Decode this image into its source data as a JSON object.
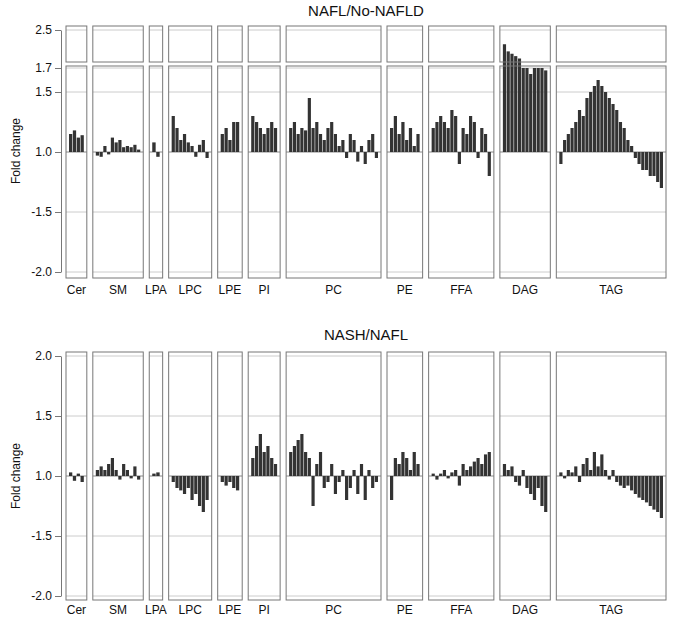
{
  "chart_data": [
    {
      "type": "bar",
      "title": "NAFL/No-NAFLD",
      "y_label": "Fold change",
      "color": "#333333",
      "grid": true,
      "ylim": [
        -2.0,
        2.5
      ],
      "yticks": [
        {
          "value": -2,
          "label": "-2.0"
        },
        -1.5,
        {
          "value": 1,
          "label": "1.0"
        },
        1.5,
        1.7,
        2.5
      ],
      "groups": [
        {
          "name": "Cer",
          "values": [
            1.15,
            1.18,
            1.12,
            1.14
          ]
        },
        {
          "name": "SM",
          "values": [
            -1.03,
            -1.04,
            1.05,
            -1.02,
            1.12,
            1.08,
            1.1,
            1.04,
            1.05,
            1.04,
            1.06,
            1.02
          ]
        },
        {
          "name": "LPA",
          "values": [
            1.08,
            -1.04
          ]
        },
        {
          "name": "LPC",
          "values": [
            1.3,
            1.2,
            1.1,
            1.15,
            1.08,
            1.05,
            -1.04,
            1.06,
            1.1,
            -1.05
          ]
        },
        {
          "name": "LPE",
          "values": [
            1.15,
            1.2,
            1.1,
            1.25,
            1.25
          ]
        },
        {
          "name": "PI",
          "values": [
            1.3,
            1.25,
            1.2,
            1.15,
            1.2,
            1.25,
            1.2
          ]
        },
        {
          "name": "PC",
          "values": [
            1.2,
            1.25,
            1.15,
            1.2,
            1.18,
            1.45,
            1.2,
            1.25,
            1.15,
            1.1,
            1.2,
            1.25,
            1.15,
            1.05,
            1.1,
            -1.05,
            1.15,
            1.1,
            -1.08,
            1.05,
            -1.1,
            1.1,
            1.15,
            -1.05
          ]
        },
        {
          "name": "PE",
          "values": [
            1.2,
            1.3,
            1.15,
            1.25,
            1.1,
            1.2,
            1.05,
            1.15
          ]
        },
        {
          "name": "FFA",
          "values": [
            1.2,
            1.25,
            1.3,
            1.25,
            1.2,
            1.35,
            1.3,
            -1.1,
            1.2,
            1.15,
            1.3,
            1.25,
            -1.05,
            1.2,
            1.15,
            -1.2
          ]
        },
        {
          "name": "DAG",
          "values": [
            2.2,
            2.05,
            2.0,
            1.95,
            1.9,
            1.7,
            1.7,
            1.65,
            1.7,
            1.7,
            1.7,
            1.68
          ]
        },
        {
          "name": "TAG",
          "values": [
            -1.1,
            1.1,
            1.15,
            1.2,
            1.25,
            1.35,
            1.3,
            1.45,
            1.5,
            1.55,
            1.6,
            1.55,
            1.5,
            1.45,
            1.4,
            1.35,
            1.25,
            1.2,
            1.1,
            1.05,
            -1.05,
            -1.1,
            -1.15,
            -1.15,
            -1.2,
            -1.2,
            -1.25,
            -1.3
          ]
        }
      ]
    },
    {
      "type": "bar",
      "title": "NASH/NAFL",
      "y_label": "Fold change",
      "color": "#333333",
      "grid": true,
      "ylim": [
        -2.0,
        2.0
      ],
      "yticks": [
        {
          "value": -2,
          "label": "-2.0"
        },
        -1.5,
        {
          "value": 1,
          "label": "1.0"
        },
        1.5,
        {
          "value": 2,
          "label": "2.0"
        }
      ],
      "groups": [
        {
          "name": "Cer",
          "values": [
            1.03,
            -1.04,
            1.02,
            -1.05
          ]
        },
        {
          "name": "SM",
          "values": [
            1.05,
            1.08,
            1.05,
            1.1,
            1.15,
            1.05,
            -1.03,
            1.1,
            1.05,
            -1.02,
            1.08,
            -1.03
          ]
        },
        {
          "name": "LPA",
          "values": [
            1.02,
            1.03
          ]
        },
        {
          "name": "LPC",
          "values": [
            -1.05,
            -1.1,
            -1.12,
            -1.15,
            -1.1,
            -1.2,
            -1.15,
            -1.25,
            -1.3,
            -1.2
          ]
        },
        {
          "name": "LPE",
          "values": [
            -1.05,
            -1.08,
            -1.05,
            -1.1,
            -1.12
          ]
        },
        {
          "name": "PI",
          "values": [
            1.15,
            1.25,
            1.35,
            1.2,
            1.25,
            1.15,
            1.1
          ]
        },
        {
          "name": "PC",
          "values": [
            1.2,
            1.25,
            1.3,
            1.35,
            1.2,
            1.15,
            -1.25,
            1.1,
            1.2,
            -1.1,
            -1.05,
            1.1,
            -1.15,
            -1.05,
            1.05,
            -1.2,
            -1.1,
            1.05,
            -1.15,
            1.1,
            -1.2,
            1.05,
            -1.1,
            -1.05
          ]
        },
        {
          "name": "PE",
          "values": [
            -1.2,
            1.15,
            1.1,
            1.2,
            1.15,
            1.05,
            1.2,
            1.1
          ]
        },
        {
          "name": "FFA",
          "values": [
            1.02,
            -1.03,
            1.02,
            1.05,
            -1.02,
            1.03,
            1.05,
            -1.08,
            1.1,
            1.05,
            1.08,
            1.12,
            1.15,
            1.1,
            1.18,
            1.2
          ]
        },
        {
          "name": "DAG",
          "values": [
            1.1,
            1.05,
            1.08,
            -1.05,
            -1.08,
            1.05,
            -1.1,
            -1.15,
            -1.2,
            -1.1,
            -1.25,
            -1.3
          ]
        },
        {
          "name": "TAG",
          "values": [
            1.03,
            -1.02,
            1.05,
            1.03,
            1.08,
            -1.05,
            1.1,
            1.15,
            1.05,
            1.2,
            1.08,
            1.18,
            1.05,
            -1.03,
            1.05,
            -1.05,
            -1.08,
            -1.1,
            -1.08,
            -1.12,
            -1.15,
            -1.18,
            -1.2,
            -1.22,
            -1.25,
            -1.28,
            -1.3,
            -1.35
          ]
        }
      ]
    }
  ]
}
